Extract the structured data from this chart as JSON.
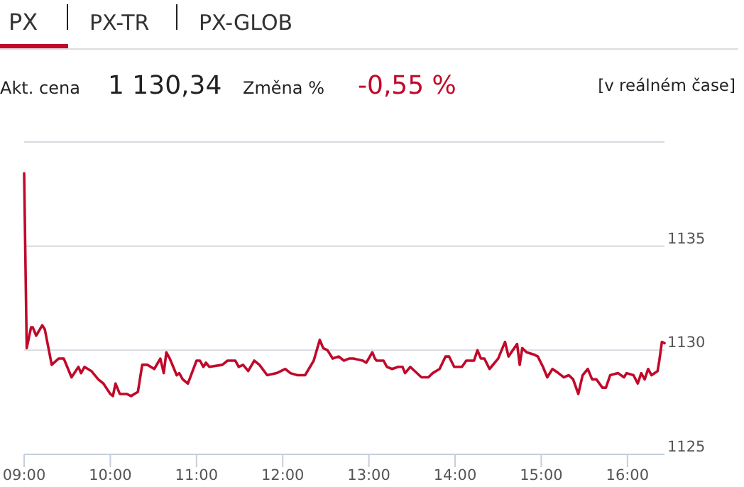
{
  "chart_data": {
    "type": "line",
    "title": "PX",
    "annotations": [
      "PX-TR",
      "PX-GLOB",
      "Akt. cena",
      "1 130,34",
      "Změna %",
      "-0,55 %",
      "[v reálném čase]"
    ],
    "x": [
      9.0,
      9.03,
      9.08,
      9.1,
      9.14,
      9.21,
      9.24,
      9.32,
      9.4,
      9.46,
      9.55,
      9.63,
      9.66,
      9.7,
      9.78,
      9.86,
      9.92,
      10.0,
      10.03,
      10.06,
      10.11,
      10.19,
      10.24,
      10.32,
      10.37,
      10.43,
      10.51,
      10.58,
      10.62,
      10.65,
      10.69,
      10.77,
      10.8,
      10.84,
      10.9,
      11.0,
      11.04,
      11.08,
      11.11,
      11.15,
      11.3,
      11.36,
      11.45,
      11.49,
      11.54,
      11.6,
      11.67,
      11.73,
      11.82,
      11.93,
      12.03,
      12.09,
      12.17,
      12.26,
      12.36,
      12.43,
      12.47,
      12.52,
      12.58,
      12.65,
      12.71,
      12.77,
      12.82,
      12.93,
      12.97,
      13.04,
      13.07,
      13.09,
      13.17,
      13.21,
      13.27,
      13.34,
      13.39,
      13.42,
      13.48,
      13.61,
      13.69,
      13.74,
      13.82,
      13.89,
      13.93,
      13.99,
      14.08,
      14.13,
      14.22,
      14.26,
      14.3,
      14.34,
      14.4,
      14.5,
      14.58,
      14.62,
      14.72,
      14.75,
      14.78,
      14.83,
      14.91,
      14.96,
      15.02,
      15.07,
      15.13,
      15.2,
      15.26,
      15.32,
      15.37,
      15.43,
      15.48,
      15.54,
      15.59,
      15.64,
      15.71,
      15.75,
      15.8,
      15.89,
      15.96,
      15.99,
      16.07,
      16.12,
      16.16,
      16.2,
      16.24,
      16.28,
      16.35,
      16.37,
      16.4,
      16.43
    ],
    "series": [
      {
        "color": "#c0092a",
        "values": [
          1138.5,
          1130.1,
          1131.1,
          1131.1,
          1130.7,
          1131.2,
          1131.0,
          1129.3,
          1129.6,
          1129.6,
          1128.7,
          1129.2,
          1128.9,
          1129.2,
          1129.0,
          1128.6,
          1128.4,
          1127.9,
          1127.8,
          1128.4,
          1127.9,
          1127.9,
          1127.8,
          1128.0,
          1129.3,
          1129.3,
          1129.1,
          1129.6,
          1128.9,
          1129.9,
          1129.6,
          1128.8,
          1128.9,
          1128.6,
          1128.4,
          1129.5,
          1129.5,
          1129.2,
          1129.4,
          1129.2,
          1129.3,
          1129.5,
          1129.5,
          1129.2,
          1129.3,
          1129.0,
          1129.5,
          1129.3,
          1128.8,
          1128.9,
          1129.1,
          1128.9,
          1128.8,
          1128.8,
          1129.5,
          1130.5,
          1130.1,
          1130.0,
          1129.6,
          1129.7,
          1129.5,
          1129.6,
          1129.6,
          1129.5,
          1129.4,
          1129.9,
          1129.6,
          1129.5,
          1129.5,
          1129.2,
          1129.1,
          1129.2,
          1129.2,
          1128.9,
          1129.2,
          1128.7,
          1128.7,
          1128.9,
          1129.1,
          1129.7,
          1129.7,
          1129.2,
          1129.2,
          1129.5,
          1129.5,
          1130.0,
          1129.6,
          1129.6,
          1129.1,
          1129.6,
          1130.4,
          1129.7,
          1130.3,
          1129.3,
          1130.1,
          1129.9,
          1129.8,
          1129.7,
          1129.2,
          1128.7,
          1129.1,
          1128.9,
          1128.7,
          1128.8,
          1128.6,
          1127.9,
          1128.8,
          1129.1,
          1128.6,
          1128.6,
          1128.2,
          1128.2,
          1128.8,
          1128.9,
          1128.7,
          1128.9,
          1128.8,
          1128.4,
          1128.9,
          1128.6,
          1129.1,
          1128.8,
          1129.0,
          1129.5,
          1130.4,
          1130.34
        ]
      }
    ],
    "xlim": [
      9,
      16.43
    ],
    "xticks": [
      {
        "value": 9,
        "label": "09:00"
      },
      {
        "value": 10,
        "label": "10:00"
      },
      {
        "value": 11,
        "label": "11:00"
      },
      {
        "value": 12,
        "label": "12:00"
      },
      {
        "value": 13,
        "label": "13:00"
      },
      {
        "value": 14,
        "label": "14:00"
      },
      {
        "value": 15,
        "label": "15:00"
      },
      {
        "value": 16,
        "label": "16:00"
      }
    ],
    "ylim": [
      1125,
      1140
    ],
    "yticks": [
      1125,
      1130,
      1135,
      {
        "value": 1140,
        "label": null
      }
    ],
    "grid": "y",
    "marker": "none",
    "line_style": "solid"
  }
}
